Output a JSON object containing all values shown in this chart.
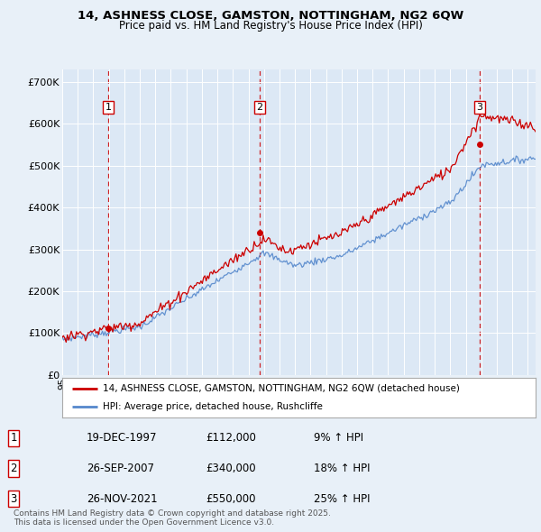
{
  "title_line1": "14, ASHNESS CLOSE, GAMSTON, NOTTINGHAM, NG2 6QW",
  "title_line2": "Price paid vs. HM Land Registry's House Price Index (HPI)",
  "background_color": "#e8f0f8",
  "plot_bg_color": "#dce8f5",
  "sale_color": "#cc0000",
  "hpi_color": "#5588cc",
  "vline_color": "#cc0000",
  "purchases": [
    {
      "label": "1",
      "date_num": 1997.97,
      "price": 112000,
      "date_str": "19-DEC-1997"
    },
    {
      "label": "2",
      "date_num": 2007.73,
      "price": 340000,
      "date_str": "26-SEP-2007"
    },
    {
      "label": "3",
      "date_num": 2021.9,
      "price": 550000,
      "date_str": "26-NOV-2021"
    }
  ],
  "ylim": [
    0,
    730000
  ],
  "xlim_start": 1995.0,
  "xlim_end": 2025.5,
  "yticks": [
    0,
    100000,
    200000,
    300000,
    400000,
    500000,
    600000,
    700000
  ],
  "ylabels": [
    "£0",
    "£100K",
    "£200K",
    "£300K",
    "£400K",
    "£500K",
    "£600K",
    "£700K"
  ],
  "legend_sale_label": "14, ASHNESS CLOSE, GAMSTON, NOTTINGHAM, NG2 6QW (detached house)",
  "legend_hpi_label": "HPI: Average price, detached house, Rushcliffe",
  "footer": "Contains HM Land Registry data © Crown copyright and database right 2025.\nThis data is licensed under the Open Government Licence v3.0.",
  "table_rows": [
    [
      "1",
      "19-DEC-1997",
      "£112,000",
      "9% ↑ HPI"
    ],
    [
      "2",
      "26-SEP-2007",
      "£340,000",
      "18% ↑ HPI"
    ],
    [
      "3",
      "26-NOV-2021",
      "£550,000",
      "25% ↑ HPI"
    ]
  ]
}
